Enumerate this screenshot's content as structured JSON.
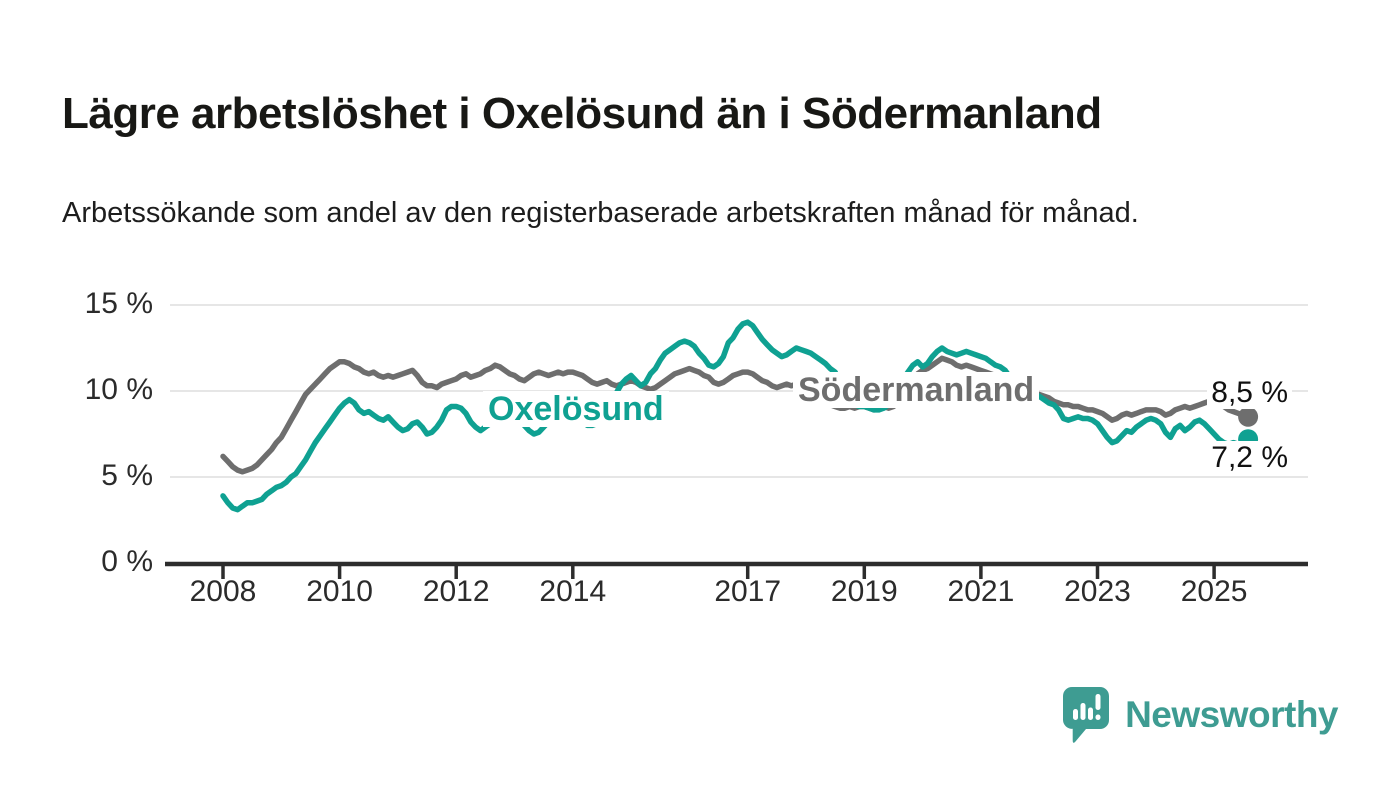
{
  "header": {
    "title": "Lägre arbetslöshet i Oxelösund än i Södermanland",
    "subtitle": "Arbetssökande som andel av den registerbaserade arbetskraften månad för månad."
  },
  "colors": {
    "oxelosund_teal": "#0fa192",
    "sodermanland_gray": "#6e6e6e",
    "gridline": "#dddddd",
    "axis": "#2d2d2d",
    "tick_text": "#2b2b2b",
    "logo_teal": "#3e9c92"
  },
  "chart_data": {
    "type": "line",
    "title": "Lägre arbetslöshet i Oxelösund än i Södermanland",
    "subtitle": "Arbetssökande som andel av den registerbaserade arbetskraften månad för månad.",
    "unit": "%",
    "frequency": "monthly",
    "x_start": "2008-01",
    "x_end": "2025-08",
    "ylim": [
      0,
      16
    ],
    "grid": "horizontal",
    "y_ticks": [
      {
        "value": 0,
        "label": "0 %"
      },
      {
        "value": 5,
        "label": "5 %"
      },
      {
        "value": 10,
        "label": "10 %"
      },
      {
        "value": 15,
        "label": "15 %"
      }
    ],
    "x_ticks": [
      {
        "year": 2008,
        "label": "2008"
      },
      {
        "year": 2010,
        "label": "2010"
      },
      {
        "year": 2012,
        "label": "2012"
      },
      {
        "year": 2014,
        "label": "2014"
      },
      {
        "year": 2017,
        "label": "2017"
      },
      {
        "year": 2019,
        "label": "2019"
      },
      {
        "year": 2021,
        "label": "2021"
      },
      {
        "year": 2023,
        "label": "2023"
      },
      {
        "year": 2025,
        "label": "2025"
      }
    ],
    "series": [
      {
        "name": "Södermanland",
        "color": "#6e6e6e",
        "end_label": "8,5 %",
        "end_value": 8.5,
        "values": [
          6.2,
          5.9,
          5.6,
          5.4,
          5.3,
          5.4,
          5.5,
          5.7,
          6.0,
          6.3,
          6.6,
          7.0,
          7.3,
          7.8,
          8.3,
          8.8,
          9.3,
          9.8,
          10.1,
          10.4,
          10.7,
          11.0,
          11.3,
          11.5,
          11.7,
          11.7,
          11.6,
          11.4,
          11.3,
          11.1,
          11.0,
          11.1,
          10.9,
          10.8,
          10.9,
          10.8,
          10.9,
          11.0,
          11.1,
          11.2,
          10.9,
          10.5,
          10.3,
          10.3,
          10.2,
          10.4,
          10.5,
          10.6,
          10.7,
          10.9,
          11.0,
          10.8,
          10.9,
          11.0,
          11.2,
          11.3,
          11.5,
          11.4,
          11.2,
          11.0,
          10.9,
          10.7,
          10.6,
          10.8,
          11.0,
          11.1,
          11.0,
          10.9,
          11.0,
          11.1,
          11.0,
          11.1,
          11.1,
          11.0,
          10.9,
          10.7,
          10.5,
          10.4,
          10.5,
          10.6,
          10.4,
          10.3,
          10.4,
          10.5,
          10.6,
          10.5,
          10.3,
          10.2,
          10.1,
          10.2,
          10.4,
          10.6,
          10.8,
          11.0,
          11.1,
          11.2,
          11.3,
          11.2,
          11.1,
          10.9,
          10.8,
          10.5,
          10.4,
          10.5,
          10.7,
          10.9,
          11.0,
          11.1,
          11.1,
          11.0,
          10.8,
          10.6,
          10.5,
          10.3,
          10.2,
          10.3,
          10.4,
          10.3,
          10.4,
          10.3,
          10.3,
          10.2,
          10.0,
          9.7,
          9.4,
          9.2,
          9.1,
          9.0,
          9.0,
          9.1,
          9.0,
          9.1,
          9.1,
          9.0,
          8.9,
          9.0,
          9.1,
          9.0,
          9.1,
          9.3,
          9.6,
          10.1,
          10.6,
          11.0,
          11.2,
          11.3,
          11.5,
          11.7,
          11.9,
          11.8,
          11.7,
          11.5,
          11.4,
          11.5,
          11.4,
          11.3,
          11.2,
          11.1,
          11.0,
          10.9,
          10.7,
          10.5,
          10.2,
          10.1,
          10.0,
          10.0,
          9.9,
          9.8,
          9.8,
          9.7,
          9.6,
          9.4,
          9.3,
          9.2,
          9.2,
          9.1,
          9.1,
          9.0,
          8.9,
          8.9,
          8.8,
          8.7,
          8.5,
          8.3,
          8.4,
          8.6,
          8.7,
          8.6,
          8.7,
          8.8,
          8.9,
          8.9,
          8.9,
          8.8,
          8.6,
          8.7,
          8.9,
          9.0,
          9.1,
          9.0,
          9.1,
          9.2,
          9.3,
          9.4,
          9.3,
          9.2,
          9.1,
          8.9,
          8.8,
          8.7,
          8.6,
          8.5
        ]
      },
      {
        "name": "Oxelösund",
        "color": "#0fa192",
        "end_label": "7,2 %",
        "end_value": 7.2,
        "values": [
          3.9,
          3.5,
          3.2,
          3.1,
          3.3,
          3.5,
          3.5,
          3.6,
          3.7,
          4.0,
          4.2,
          4.4,
          4.5,
          4.7,
          5.0,
          5.2,
          5.6,
          6.0,
          6.5,
          7.0,
          7.4,
          7.8,
          8.2,
          8.6,
          9.0,
          9.3,
          9.5,
          9.3,
          8.9,
          8.7,
          8.8,
          8.6,
          8.4,
          8.3,
          8.5,
          8.2,
          7.9,
          7.7,
          7.8,
          8.1,
          8.2,
          7.9,
          7.5,
          7.6,
          7.9,
          8.3,
          8.9,
          9.1,
          9.1,
          9.0,
          8.7,
          8.2,
          7.9,
          7.7,
          7.9,
          8.1,
          8.5,
          8.8,
          9.0,
          8.9,
          8.7,
          8.4,
          8.0,
          7.7,
          7.5,
          7.6,
          7.9,
          8.2,
          8.1,
          8.2,
          8.3,
          8.2,
          8.1,
          8.3,
          8.2,
          8.0,
          8.0,
          8.1,
          8.3,
          8.6,
          9.2,
          9.9,
          10.4,
          10.7,
          10.9,
          10.6,
          10.3,
          10.5,
          11.0,
          11.3,
          11.8,
          12.2,
          12.4,
          12.6,
          12.8,
          12.9,
          12.8,
          12.6,
          12.2,
          11.9,
          11.5,
          11.4,
          11.6,
          12.0,
          12.8,
          13.1,
          13.6,
          13.9,
          14.0,
          13.8,
          13.4,
          13.0,
          12.7,
          12.4,
          12.2,
          12.0,
          12.1,
          12.3,
          12.5,
          12.4,
          12.3,
          12.2,
          12.0,
          11.8,
          11.6,
          11.3,
          11.1,
          10.5,
          9.9,
          9.5,
          9.2,
          9.1,
          9.1,
          9.0,
          8.9,
          8.9,
          9.0,
          9.2,
          9.6,
          10.1,
          10.7,
          11.1,
          11.5,
          11.7,
          11.4,
          11.6,
          12.0,
          12.3,
          12.5,
          12.3,
          12.2,
          12.1,
          12.2,
          12.3,
          12.2,
          12.1,
          12.0,
          11.9,
          11.7,
          11.5,
          11.4,
          11.2,
          10.8,
          10.3,
          10.0,
          10.0,
          9.9,
          9.8,
          9.7,
          9.5,
          9.3,
          9.2,
          8.9,
          8.4,
          8.3,
          8.4,
          8.5,
          8.4,
          8.4,
          8.3,
          8.1,
          7.7,
          7.3,
          7.0,
          7.1,
          7.4,
          7.7,
          7.6,
          7.9,
          8.1,
          8.3,
          8.4,
          8.3,
          8.1,
          7.6,
          7.3,
          7.8,
          8.0,
          7.7,
          7.9,
          8.2,
          8.3,
          8.1,
          7.8,
          7.5,
          7.2,
          7.0,
          6.9,
          7.0,
          6.9,
          7.0,
          7.2
        ]
      }
    ]
  },
  "branding": {
    "logo_text": "Newsworthy"
  }
}
